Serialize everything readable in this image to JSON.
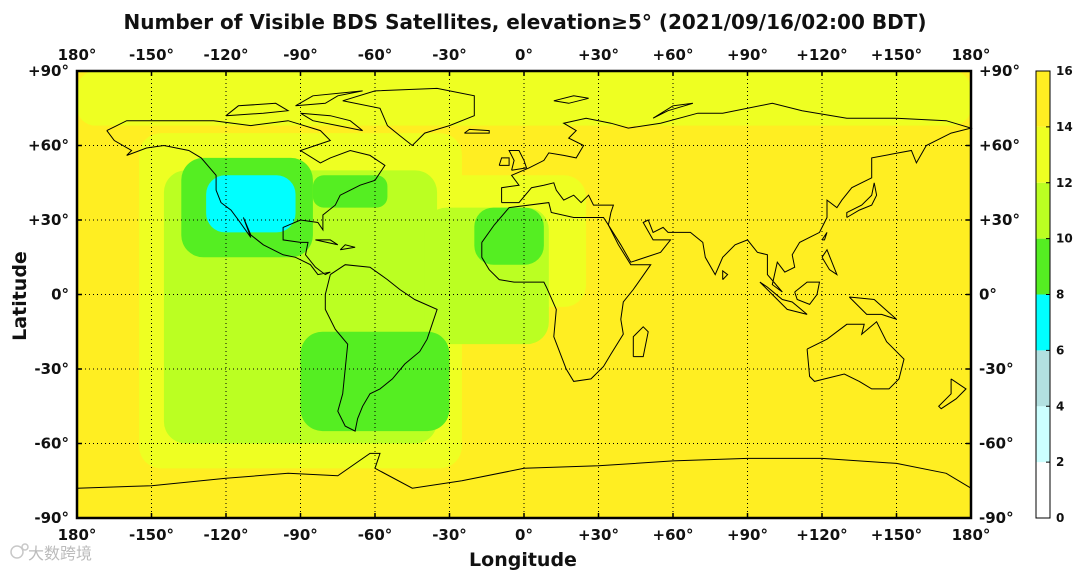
{
  "chart_data": {
    "type": "heatmap",
    "title": "Number of Visible BDS Satellites, elevation≥5° (2021/09/16/02:00 BDT)",
    "xlabel": "Longitude",
    "ylabel": "Latitude",
    "xlim": [
      -180,
      180
    ],
    "ylim": [
      -90,
      90
    ],
    "x_ticks": [
      -180,
      -150,
      -120,
      -90,
      -60,
      -30,
      0,
      30,
      60,
      90,
      120,
      150,
      180
    ],
    "y_ticks": [
      90,
      60,
      30,
      0,
      -30,
      -60,
      -90
    ],
    "x_tick_labels": [
      "180°",
      "-150°",
      "-120°",
      "-90°",
      "-60°",
      "-30°",
      "0°",
      "+30°",
      "+60°",
      "+90°",
      "+120°",
      "+150°",
      "180°"
    ],
    "y_tick_labels": [
      "+90°",
      "+60°",
      "+30°",
      "0°",
      "-30°",
      "-60°",
      "-90°"
    ],
    "grid": true,
    "colorbar": {
      "position": "right",
      "range": [
        0,
        16
      ],
      "ticks": [
        "0",
        "2",
        "4",
        "6",
        "8",
        "10",
        "12",
        "14",
        "16"
      ],
      "bands": [
        {
          "from": 0,
          "to": 2,
          "color": "#ffffff"
        },
        {
          "from": 2,
          "to": 4,
          "color": "#ccffff"
        },
        {
          "from": 4,
          "to": 6,
          "color": "#b2e0e0"
        },
        {
          "from": 6,
          "to": 8,
          "color": "#00ffff"
        },
        {
          "from": 8,
          "to": 10,
          "color": "#55ee22"
        },
        {
          "from": 10,
          "to": 12,
          "color": "#bbff22"
        },
        {
          "from": 12,
          "to": 14,
          "color": "#eeff22"
        },
        {
          "from": 14,
          "to": 16,
          "color": "#ffee22"
        }
      ]
    },
    "background_level": 15,
    "regions": [
      {
        "level": 13,
        "lon": [
          -180,
          180
        ],
        "lat": [
          68,
          90
        ]
      },
      {
        "level": 13,
        "lon": [
          -155,
          -25
        ],
        "lat": [
          -70,
          65
        ]
      },
      {
        "level": 13,
        "lon": [
          -55,
          25
        ],
        "lat": [
          -5,
          48
        ]
      },
      {
        "level": 11,
        "lon": [
          -145,
          -35
        ],
        "lat": [
          -60,
          50
        ]
      },
      {
        "level": 11,
        "lon": [
          -40,
          10
        ],
        "lat": [
          -20,
          35
        ]
      },
      {
        "level": 9,
        "lon": [
          -138,
          -85
        ],
        "lat": [
          15,
          55
        ]
      },
      {
        "level": 9,
        "lon": [
          -85,
          -55
        ],
        "lat": [
          35,
          48
        ]
      },
      {
        "level": 9,
        "lon": [
          -20,
          8
        ],
        "lat": [
          12,
          35
        ]
      },
      {
        "level": 9,
        "lon": [
          -90,
          -30
        ],
        "lat": [
          -55,
          -15
        ]
      },
      {
        "level": 7,
        "lon": [
          -128,
          -92
        ],
        "lat": [
          25,
          48
        ]
      }
    ]
  },
  "watermark": "大数跨境"
}
